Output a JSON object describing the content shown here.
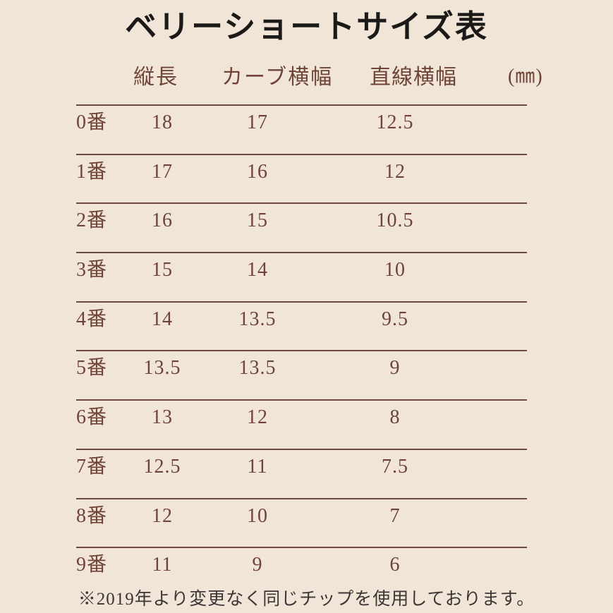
{
  "title": "ベリーショートサイズ表",
  "table": {
    "headers": {
      "col1": "縦長",
      "col2": "カーブ横幅",
      "col3": "直線横幅",
      "unit": "(㎜)"
    },
    "rows": [
      {
        "label": "0番",
        "length": "18",
        "curve": "17",
        "straight": "12.5"
      },
      {
        "label": "1番",
        "length": "17",
        "curve": "16",
        "straight": "12"
      },
      {
        "label": "2番",
        "length": "16",
        "curve": "15",
        "straight": "10.5"
      },
      {
        "label": "3番",
        "length": "15",
        "curve": "14",
        "straight": "10"
      },
      {
        "label": "4番",
        "length": "14",
        "curve": "13.5",
        "straight": "9.5"
      },
      {
        "label": "5番",
        "length": "13.5",
        "curve": "13.5",
        "straight": "9"
      },
      {
        "label": "6番",
        "length": "13",
        "curve": "12",
        "straight": "8"
      },
      {
        "label": "7番",
        "length": "12.5",
        "curve": "11",
        "straight": "7.5"
      },
      {
        "label": "8番",
        "length": "12",
        "curve": "10",
        "straight": "7"
      },
      {
        "label": "9番",
        "length": "11",
        "curve": "9",
        "straight": "6"
      }
    ]
  },
  "footer": "※2019年より変更なく同じチップを使用しております。",
  "colors": {
    "background": "#f1e5d8",
    "text": "#6f4336",
    "line": "#6d4a3d",
    "title": "#1c1a18",
    "footer": "#3b3533"
  }
}
